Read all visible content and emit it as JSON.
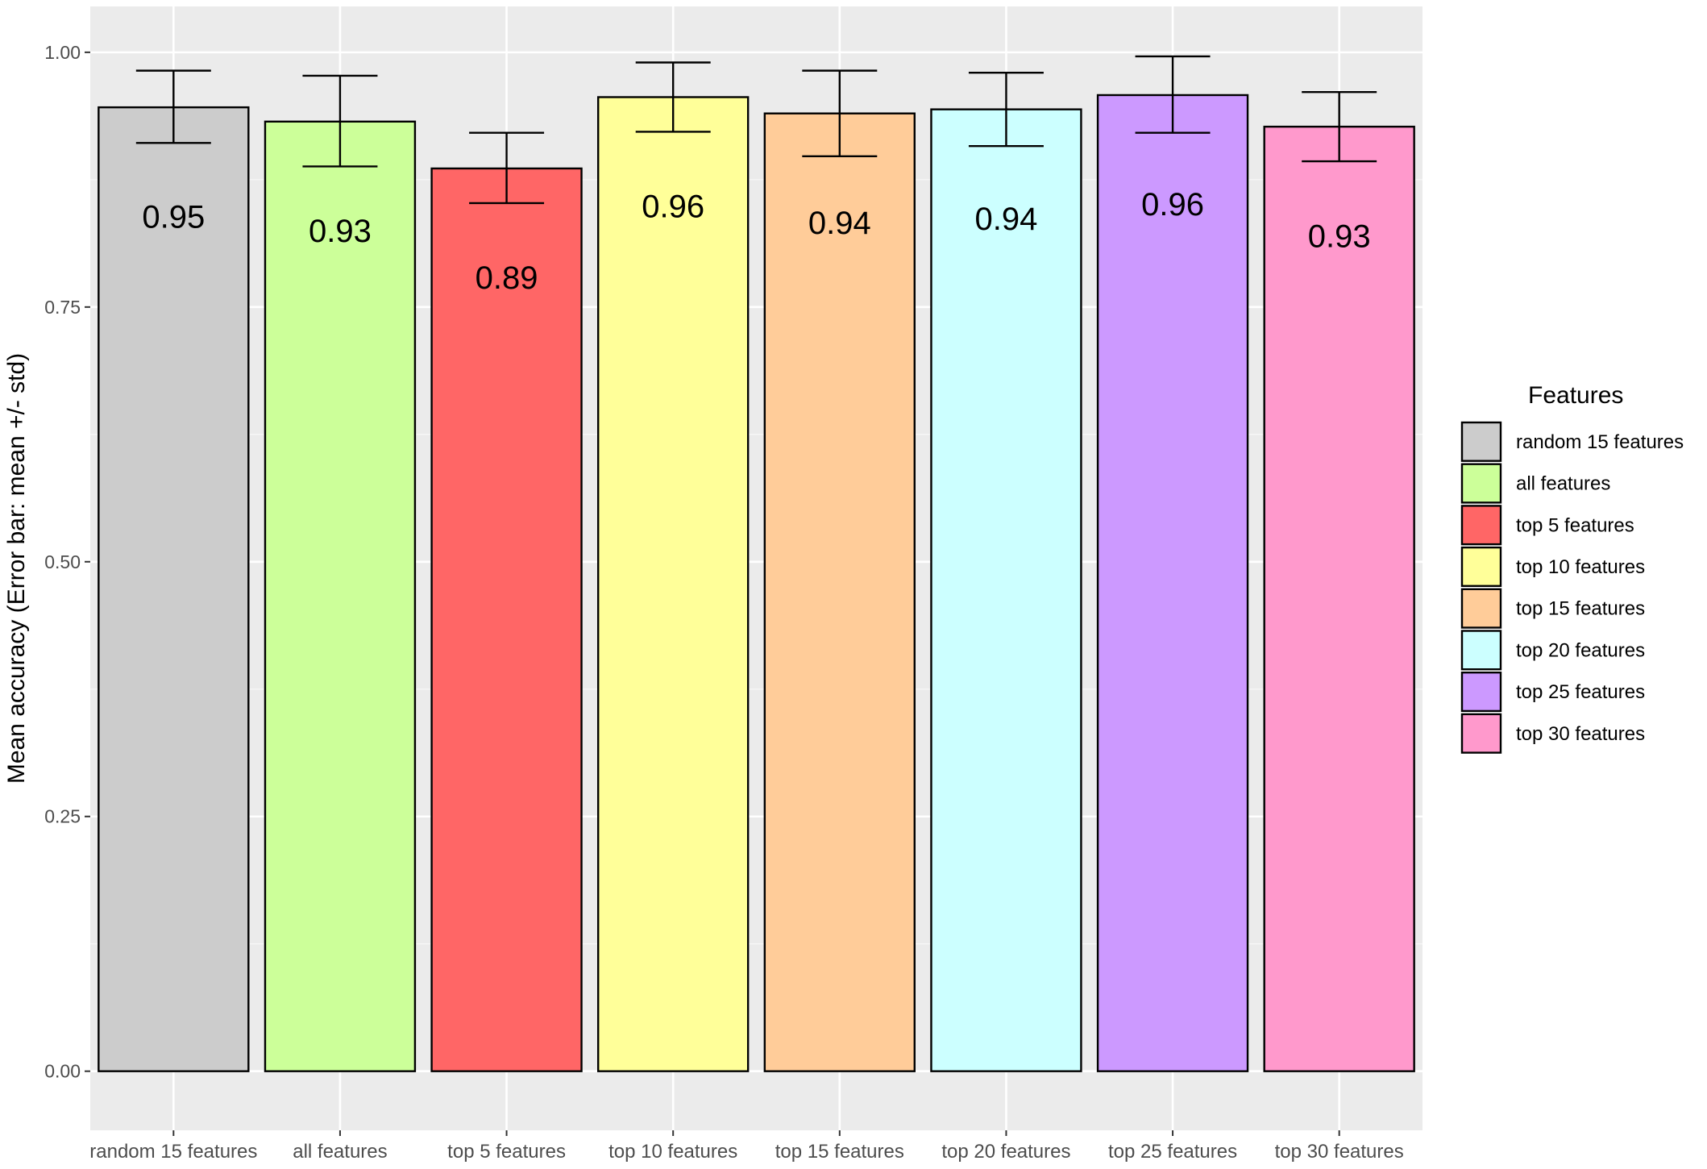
{
  "chart_data": {
    "type": "bar",
    "title": "",
    "xlabel": "",
    "ylabel": "Mean accuracy (Error bar: mean +/- std)",
    "ylim": [
      -0.058,
      1.045
    ],
    "y_ticks": [
      "0.00",
      "0.25",
      "0.50",
      "0.75",
      "1.00"
    ],
    "y_tick_values": [
      0,
      0.25,
      0.5,
      0.75,
      1.0
    ],
    "grid": true,
    "categories": [
      "random 15 features",
      "all features",
      "top 5 features",
      "top 10 features",
      "top 15 features",
      "top 20 features",
      "top 25 features",
      "top 30 features"
    ],
    "values": [
      0.946,
      0.932,
      0.886,
      0.956,
      0.94,
      0.944,
      0.958,
      0.927
    ],
    "error_low": [
      0.911,
      0.888,
      0.852,
      0.922,
      0.898,
      0.908,
      0.921,
      0.893
    ],
    "error_high": [
      0.982,
      0.977,
      0.921,
      0.99,
      0.982,
      0.98,
      0.996,
      0.961
    ],
    "data_labels": [
      "0.95",
      "0.93",
      "0.89",
      "0.96",
      "0.94",
      "0.94",
      "0.96",
      "0.93"
    ],
    "colors": [
      "#CCCCCC",
      "#CCFF99",
      "#FF6666",
      "#FFFF99",
      "#FFCC99",
      "#CCFFFF",
      "#CC99FF",
      "#FF99CC"
    ],
    "legend": {
      "title": "Features",
      "placement": "right",
      "entries": [
        "random 15 features",
        "all features",
        "top 5 features",
        "top 10 features",
        "top 15 features",
        "top 20 features",
        "top 25 features",
        "top 30 features"
      ]
    }
  },
  "style": {
    "panel_background": "#EBEBEB",
    "grid_major": "#FFFFFF",
    "bar_outline": "#000000"
  }
}
